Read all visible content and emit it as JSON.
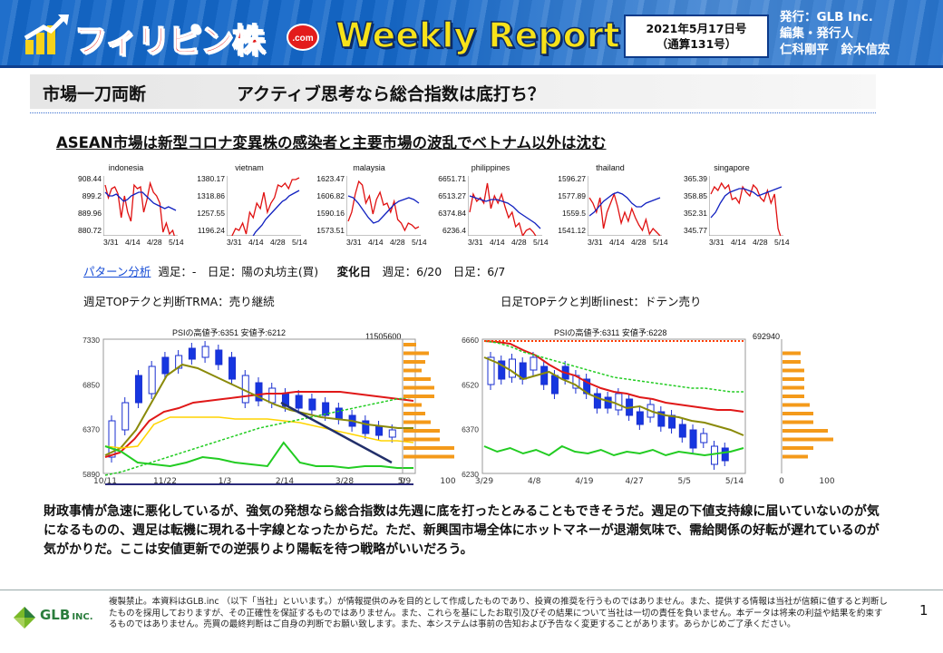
{
  "header": {
    "brand": "フィリピン株",
    "brand_badge": ".com",
    "title": "Weekly Report",
    "date": "2021年5月17日号",
    "issue": "（通算131号）",
    "publisher": "発行：GLB Inc.\n編集・発行人\n仁科剛平　鈴木信宏"
  },
  "section": {
    "label": "市場一刀両断",
    "headline": "アクティブ思考なら総合指数は底打ち？"
  },
  "subheading": "ASEAN市場は新型コロナ変異株の感染者と主要市場の波乱でベトナム以外は沈む",
  "mini_charts": [
    {
      "name": "indonesia",
      "y_ticks": [
        "908.44",
        "899.2",
        "889.96",
        "880.72"
      ],
      "x_ticks": [
        "3/31",
        "4/14",
        "4/28",
        "5/14"
      ]
    },
    {
      "name": "vietnam",
      "y_ticks": [
        "1380.17",
        "1318.86",
        "1257.55",
        "1196.24"
      ],
      "x_ticks": [
        "3/31",
        "4/14",
        "4/28",
        "5/14"
      ]
    },
    {
      "name": "malaysia",
      "y_ticks": [
        "1623.47",
        "1606.82",
        "1590.16",
        "1573.51"
      ],
      "x_ticks": [
        "3/31",
        "4/14",
        "4/28",
        "5/14"
      ]
    },
    {
      "name": "philippines",
      "y_ticks": [
        "6651.71",
        "6513.27",
        "6374.84",
        "6236.4"
      ],
      "x_ticks": [
        "3/31",
        "4/14",
        "4/28",
        "5/14"
      ]
    },
    {
      "name": "thailand",
      "y_ticks": [
        "1596.27",
        "1577.89",
        "1559.5",
        "1541.12"
      ],
      "x_ticks": [
        "3/31",
        "4/14",
        "4/28",
        "5/14"
      ]
    },
    {
      "name": "singapore",
      "y_ticks": [
        "365.39",
        "358.85",
        "352.31",
        "345.77"
      ],
      "x_ticks": [
        "3/31",
        "4/14",
        "4/28",
        "5/14"
      ]
    }
  ],
  "pattern": {
    "link": "パターン分析",
    "weekly": "週足：-",
    "daily": "日足：陽の丸坊主(買)",
    "change_label": "変化日",
    "change_weekly": "週足：6/20",
    "change_daily": "日足：6/7"
  },
  "weekly_chart": {
    "title": "週足TOPテクと判断TRMA：売り継続",
    "psi": "PSIの高値予:6351 安値予:6212",
    "y_ticks": [
      "7330",
      "6850",
      "6370",
      "5890"
    ],
    "x_ticks": [
      "10/11",
      "11/22",
      "1/3",
      "2/14",
      "3/28",
      "5/9"
    ],
    "volume_max": "11505600",
    "hist_ticks": [
      "0",
      "100"
    ]
  },
  "daily_chart": {
    "title": "日足TOPテクと判断linest：ドテン売り",
    "psi": "PSIの高値予:6311 安値予:6228",
    "y_ticks": [
      "6660",
      "6520",
      "6370",
      "6230"
    ],
    "x_ticks": [
      "3/29",
      "4/8",
      "4/19",
      "4/27",
      "5/5",
      "5/14"
    ],
    "volume_max": "692940",
    "hist_ticks": [
      "0",
      "100"
    ]
  },
  "paragraph": "財政事情が急速に悪化しているが、強気の発想なら総合指数は先週に底を打ったとみることもできそうだ。週足の下値支持線に届いていないのが気になるものの、週足は転機に現れる十字線となったからだ。ただ、新興国市場全体にホットマネーが退潮気味で、需給関係の好転が遅れているのが気がかりだ。ここは安値更新での逆張りより陽転を待つ戦略がいいだろう。",
  "footer": {
    "logo": "GLB",
    "logo_suffix": "INC.",
    "disclaimer": "複製禁止。本資料はGLB.inc （以下「当社」といいます。）が情報提供のみを目的として作成したものであり、投資の推奨を行うものではありません。また、提供する情報は当社が信頼に値すると判断したものを採用しておりますが、その正確性を保証するものではありません。また、これらを基にしたお取引及びその結果について当社は一切の責任を負いません。本データは将来の利益や結果を約束するものではありません。売買の最終判断はご自身の判断でお願い致します。また、本システムは事前の告知および予告なく変更することがあります。あらかじめご了承ください。",
    "page": "1"
  }
}
